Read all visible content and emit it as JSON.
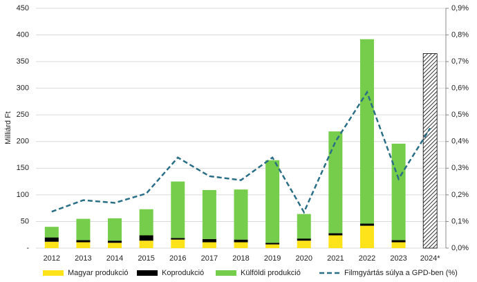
{
  "chart_data": {
    "type": "bar",
    "stacked": true,
    "y_label": "Milliárd Ft",
    "categories": [
      "2012",
      "2013",
      "2014",
      "2015",
      "2016",
      "2017",
      "2018",
      "2019",
      "2020",
      "2021",
      "2022",
      "2023",
      "2024*"
    ],
    "series": [
      {
        "name": "Magyar produkció",
        "color": "#ffe31a",
        "values": [
          12,
          11,
          10,
          14,
          16,
          11,
          11,
          7,
          14,
          24,
          42,
          11,
          null
        ]
      },
      {
        "name": "Koprodukció",
        "color": "#000000",
        "values": [
          8,
          4,
          4,
          10,
          3,
          6,
          5,
          3,
          4,
          4,
          4,
          4,
          null
        ]
      },
      {
        "name": "Külföldi produkció",
        "color": "#76cc4b",
        "values": [
          20,
          40,
          42,
          49,
          106,
          92,
          94,
          155,
          46,
          191,
          346,
          181,
          null
        ]
      },
      {
        "color": "#000000",
        "pattern": "hatch",
        "values": [
          null,
          null,
          null,
          null,
          null,
          null,
          null,
          null,
          null,
          null,
          null,
          null,
          365
        ]
      },
      {
        "name": "Filmgyártás súlya a GPD-ben (%)",
        "type": "line",
        "axis": "y2",
        "dashed": true,
        "color": "#2b6f87",
        "values": [
          0.137,
          0.18,
          0.17,
          0.205,
          0.34,
          0.27,
          0.255,
          0.34,
          0.135,
          0.4,
          0.585,
          0.26,
          0.45
        ]
      }
    ],
    "ylim": [
      0,
      450
    ],
    "yticks": [
      {
        "value": 0,
        "label": "-"
      },
      50,
      100,
      150,
      200,
      250,
      300,
      350,
      400,
      450
    ],
    "y2lim": [
      0,
      0.9
    ],
    "y2ticks": [
      {
        "value": 0,
        "label": "0,0%"
      },
      {
        "value": 0.1,
        "label": "0,1%"
      },
      {
        "value": 0.2,
        "label": "0,2%"
      },
      {
        "value": 0.3,
        "label": "0,3%"
      },
      {
        "value": 0.4,
        "label": "0,4%"
      },
      {
        "value": 0.5,
        "label": "0,5%"
      },
      {
        "value": 0.6,
        "label": "0,6%"
      },
      {
        "value": 0.7,
        "label": "0,7%"
      },
      {
        "value": 0.8,
        "label": "0,8%"
      },
      {
        "value": 0.9,
        "label": "0,9%"
      }
    ],
    "grid": true,
    "legend": "bottom"
  }
}
